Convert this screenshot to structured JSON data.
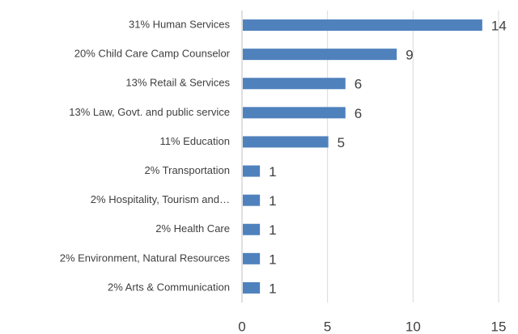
{
  "chart_data": {
    "type": "bar",
    "orientation": "horizontal",
    "categories": [
      "31% Human Services",
      "20% Child Care Camp Counselor",
      "13% Retail & Services",
      "13% Law, Govt. and  public service",
      "11% Education",
      "2% Transportation",
      "2% Hospitality, Tourism and…",
      "2% Health Care",
      "2% Environment, Natural Resources",
      "2% Arts & Communication"
    ],
    "values": [
      14,
      9,
      6,
      6,
      5,
      1,
      1,
      1,
      1,
      1
    ],
    "color": "#4f81bd",
    "xlim": [
      0,
      15
    ],
    "xticks": [
      0,
      5,
      10,
      15
    ],
    "grid": true
  }
}
